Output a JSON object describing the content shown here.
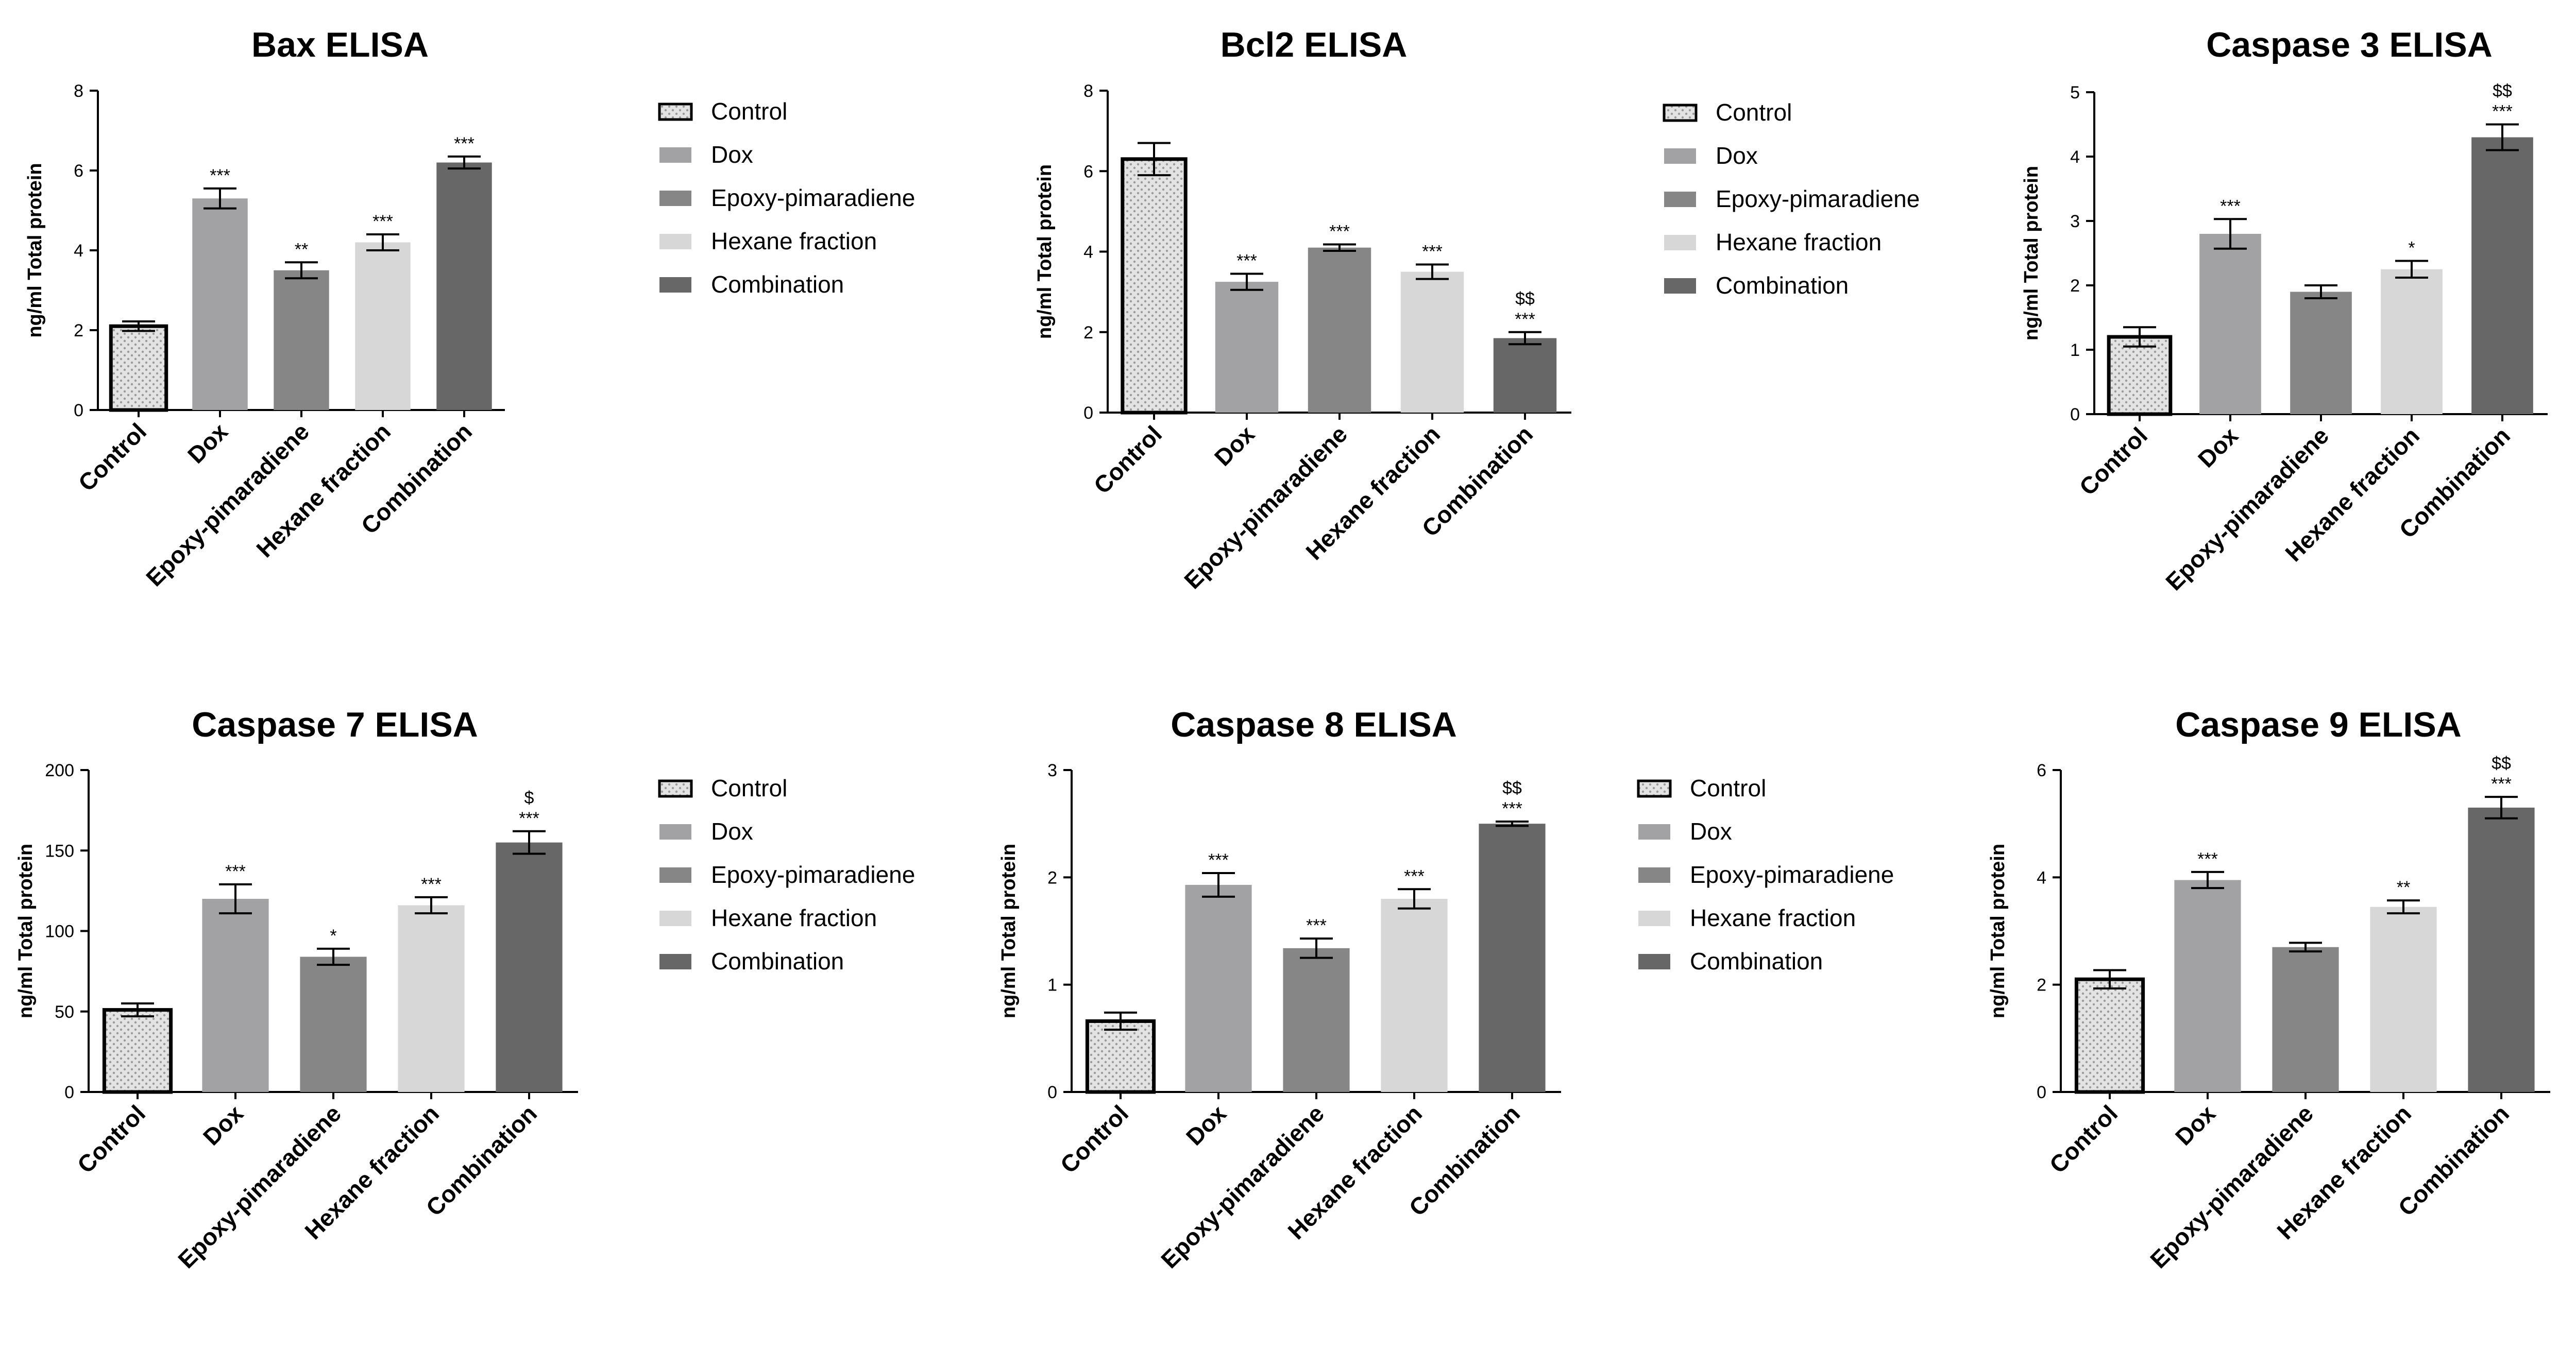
{
  "figure": {
    "legend": [
      {
        "label": "Control",
        "color": "#e3e3e3",
        "pattern": "dots",
        "outline": true
      },
      {
        "label": "Dox",
        "color": "#a2a2a4",
        "pattern": "none",
        "outline": false
      },
      {
        "label": "Epoxy-pimaradiene",
        "color": "#868686",
        "pattern": "none",
        "outline": false
      },
      {
        "label": "Hexane fraction",
        "color": "#d7d7d7",
        "pattern": "none",
        "outline": false
      },
      {
        "label": "Combination",
        "color": "#676767",
        "pattern": "none",
        "outline": false
      }
    ]
  },
  "chart_data": [
    {
      "type": "bar",
      "title": "Bax ELISA",
      "ylabel": "ng/ml Total protein",
      "xlabel": "",
      "categories": [
        "Control",
        "Dox",
        "Epoxy-pimaradiene",
        "Hexane fraction",
        "Combination"
      ],
      "values": [
        2.1,
        5.3,
        3.5,
        4.2,
        6.2
      ],
      "errors": [
        0.12,
        0.25,
        0.2,
        0.2,
        0.15
      ],
      "significance": [
        "",
        "***",
        "**",
        "***",
        "***"
      ],
      "ylim": [
        0,
        8
      ],
      "yticks": [
        "0",
        "2",
        "4",
        "6",
        "8"
      ],
      "legend_position": "right"
    },
    {
      "type": "bar",
      "title": "Bcl2 ELISA",
      "ylabel": "ng/ml Total protein",
      "xlabel": "",
      "categories": [
        "Control",
        "Dox",
        "Epoxy-pimaradiene",
        "Hexane fraction",
        "Combination"
      ],
      "values": [
        6.3,
        3.25,
        4.1,
        3.5,
        1.85
      ],
      "errors": [
        0.4,
        0.2,
        0.08,
        0.18,
        0.15
      ],
      "significance": [
        "",
        "***",
        "***",
        "***",
        "***\n$$"
      ],
      "ylim": [
        0,
        8
      ],
      "yticks": [
        "0",
        "2",
        "4",
        "6",
        "8"
      ],
      "legend_position": "right"
    },
    {
      "type": "bar",
      "title": "Caspase 3 ELISA",
      "ylabel": "ng/ml Total protein",
      "xlabel": "",
      "categories": [
        "Control",
        "Dox",
        "Epoxy-pimaradiene",
        "Hexane fraction",
        "Combination"
      ],
      "values": [
        1.2,
        2.8,
        1.9,
        2.25,
        4.3
      ],
      "errors": [
        0.15,
        0.23,
        0.1,
        0.13,
        0.2
      ],
      "significance": [
        "",
        "***",
        "",
        "*",
        "***\n$$"
      ],
      "ylim": [
        0,
        5
      ],
      "yticks": [
        "0",
        "1",
        "2",
        "3",
        "4",
        "5"
      ],
      "legend_position": "none"
    },
    {
      "type": "bar",
      "title": "Caspase 7 ELISA",
      "ylabel": "ng/ml Total protein",
      "xlabel": "",
      "categories": [
        "Control",
        "Dox",
        "Epoxy-pimaradiene",
        "Hexane fraction",
        "Combination"
      ],
      "values": [
        51,
        120,
        84,
        116,
        155
      ],
      "errors": [
        4,
        9,
        5,
        5,
        7
      ],
      "significance": [
        "",
        "***",
        "*",
        "***",
        "***\n$"
      ],
      "ylim": [
        0,
        200
      ],
      "yticks": [
        "0",
        "50",
        "100",
        "150",
        "200"
      ],
      "legend_position": "right"
    },
    {
      "type": "bar",
      "title": "Caspase 8 ELISA",
      "ylabel": "ng/ml Total protein",
      "xlabel": "",
      "categories": [
        "Control",
        "Dox",
        "Epoxy-pimaradiene",
        "Hexane fraction",
        "Combination"
      ],
      "values": [
        0.66,
        1.93,
        1.34,
        1.8,
        2.5
      ],
      "errors": [
        0.08,
        0.11,
        0.09,
        0.09,
        0.02
      ],
      "significance": [
        "",
        "***",
        "***",
        "***",
        "***\n$$"
      ],
      "ylim": [
        0,
        3
      ],
      "yticks": [
        "0",
        "1",
        "2",
        "3"
      ],
      "legend_position": "right"
    },
    {
      "type": "bar",
      "title": "Caspase 9 ELISA",
      "ylabel": "ng/ml Total protein",
      "xlabel": "",
      "categories": [
        "Control",
        "Dox",
        "Epoxy-pimaradiene",
        "Hexane fraction",
        "Combination"
      ],
      "values": [
        2.1,
        3.95,
        2.7,
        3.45,
        5.3
      ],
      "errors": [
        0.17,
        0.15,
        0.08,
        0.12,
        0.2
      ],
      "significance": [
        "",
        "***",
        "",
        "**",
        "***\n$$"
      ],
      "ylim": [
        0,
        6
      ],
      "yticks": [
        "0",
        "2",
        "4",
        "6"
      ],
      "legend_position": "none"
    }
  ]
}
